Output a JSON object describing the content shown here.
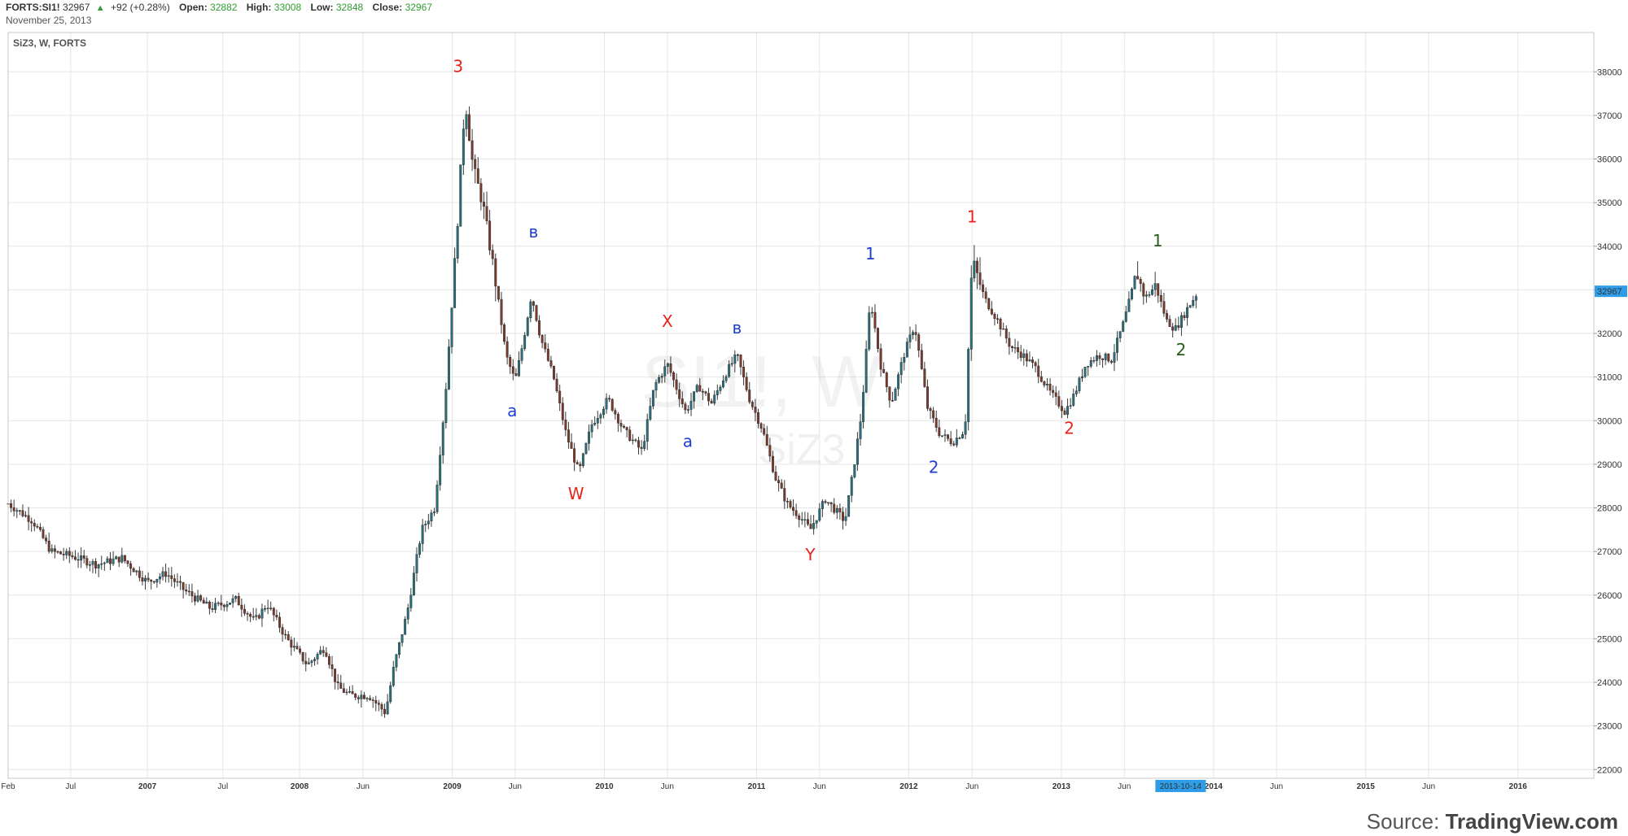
{
  "header": {
    "symbol": "FORTS:SI1!",
    "last": "32967",
    "change": "+92 (+0.28%)",
    "open_label": "Open:",
    "open": "32882",
    "high_label": "High:",
    "high": "33008",
    "low_label": "Low:",
    "low": "32848",
    "close_label": "Close:",
    "close": "32967",
    "date": "November 25, 2013"
  },
  "legend": "SiZ3, W, FORTS",
  "watermark": {
    "main": "SI1!, W",
    "sub": "SiZ3"
  },
  "price_tag": "32967",
  "time_tag": "2013-10-14",
  "source": {
    "prefix": "Source: ",
    "brand": "TradingView.com"
  },
  "colors": {
    "up": "#2a6f7d",
    "down": "#7a3b2a",
    "wick": "#3a3a3a",
    "grid": "#e6e6e6",
    "tag": "#2e9ce6",
    "red": "#e8231e",
    "blue": "#1f3fcf",
    "green": "#2a5a1a"
  },
  "chart_data": {
    "type": "candlestick",
    "interval": "W",
    "yticks": [
      22000,
      23000,
      24000,
      25000,
      26000,
      27000,
      28000,
      29000,
      30000,
      31000,
      32000,
      33000,
      34000,
      35000,
      36000,
      37000,
      38000
    ],
    "ylim": [
      21800,
      38900
    ],
    "xlim": [
      "2006-02-01",
      "2016-07-01"
    ],
    "xticks": [
      {
        "date": "2006-02-01",
        "label": "Feb",
        "year": false
      },
      {
        "date": "2006-07-01",
        "label": "Jul",
        "year": false
      },
      {
        "date": "2007-01-01",
        "label": "2007",
        "year": true
      },
      {
        "date": "2007-07-01",
        "label": "Jul",
        "year": false
      },
      {
        "date": "2008-01-01",
        "label": "2008",
        "year": true
      },
      {
        "date": "2008-06-01",
        "label": "Jun",
        "year": false
      },
      {
        "date": "2009-01-01",
        "label": "2009",
        "year": true
      },
      {
        "date": "2009-06-01",
        "label": "Jun",
        "year": false
      },
      {
        "date": "2010-01-01",
        "label": "2010",
        "year": true
      },
      {
        "date": "2010-06-01",
        "label": "Jun",
        "year": false
      },
      {
        "date": "2011-01-01",
        "label": "2011",
        "year": true
      },
      {
        "date": "2011-06-01",
        "label": "Jun",
        "year": false
      },
      {
        "date": "2012-01-01",
        "label": "2012",
        "year": true
      },
      {
        "date": "2012-06-01",
        "label": "Jun",
        "year": false
      },
      {
        "date": "2013-01-01",
        "label": "2013",
        "year": true
      },
      {
        "date": "2013-06-01",
        "label": "Jun",
        "year": false
      },
      {
        "date": "2014-01-01",
        "label": "2014",
        "year": true
      },
      {
        "date": "2014-06-01",
        "label": "Jun",
        "year": false
      },
      {
        "date": "2015-01-01",
        "label": "2015",
        "year": true
      },
      {
        "date": "2015-06-01",
        "label": "Jun",
        "year": false
      },
      {
        "date": "2016-01-01",
        "label": "2016",
        "year": true
      }
    ],
    "path": [
      [
        "2006-02-01",
        28100
      ],
      [
        "2006-04-01",
        27700
      ],
      [
        "2006-05-15",
        27000
      ],
      [
        "2006-07-01",
        26900
      ],
      [
        "2006-09-01",
        26700
      ],
      [
        "2006-11-01",
        26850
      ],
      [
        "2007-01-01",
        26300
      ],
      [
        "2007-02-15",
        26500
      ],
      [
        "2007-04-01",
        26100
      ],
      [
        "2007-06-01",
        25700
      ],
      [
        "2007-08-01",
        25900
      ],
      [
        "2007-09-15",
        25400
      ],
      [
        "2007-10-15",
        25800
      ],
      [
        "2007-12-01",
        25000
      ],
      [
        "2008-01-20",
        24400
      ],
      [
        "2008-03-01",
        24800
      ],
      [
        "2008-04-01",
        23900
      ],
      [
        "2008-05-01",
        23700
      ],
      [
        "2008-06-15",
        23700
      ],
      [
        "2008-07-25",
        23300
      ],
      [
        "2008-08-15",
        24400
      ],
      [
        "2008-09-15",
        25600
      ],
      [
        "2008-10-20",
        27500
      ],
      [
        "2008-11-20",
        28000
      ],
      [
        "2008-12-15",
        30500
      ],
      [
        "2009-01-10",
        34000
      ],
      [
        "2009-02-01",
        37400
      ],
      [
        "2009-02-20",
        35800
      ],
      [
        "2009-03-15",
        35000
      ],
      [
        "2009-04-10",
        33500
      ],
      [
        "2009-05-10",
        31500
      ],
      [
        "2009-06-01",
        30900
      ],
      [
        "2009-06-20",
        31800
      ],
      [
        "2009-07-10",
        32900
      ],
      [
        "2009-08-01",
        31900
      ],
      [
        "2009-09-01",
        31000
      ],
      [
        "2009-10-01",
        29700
      ],
      [
        "2009-11-01",
        28800
      ],
      [
        "2009-12-01",
        29900
      ],
      [
        "2010-01-10",
        30500
      ],
      [
        "2010-02-15",
        29800
      ],
      [
        "2010-04-01",
        29300
      ],
      [
        "2010-05-01",
        30800
      ],
      [
        "2010-06-01",
        31300
      ],
      [
        "2010-07-15",
        30200
      ],
      [
        "2010-08-15",
        30800
      ],
      [
        "2010-09-15",
        30400
      ],
      [
        "2010-10-20",
        31100
      ],
      [
        "2010-11-15",
        31500
      ],
      [
        "2010-12-15",
        30500
      ],
      [
        "2011-01-15",
        29800
      ],
      [
        "2011-02-15",
        28700
      ],
      [
        "2011-03-15",
        28100
      ],
      [
        "2011-04-15",
        27800
      ],
      [
        "2011-05-10",
        27500
      ],
      [
        "2011-06-15",
        28200
      ],
      [
        "2011-08-01",
        27700
      ],
      [
        "2011-08-20",
        28800
      ],
      [
        "2011-09-10",
        30200
      ],
      [
        "2011-10-01",
        32800
      ],
      [
        "2011-10-25",
        31300
      ],
      [
        "2011-11-20",
        30400
      ],
      [
        "2011-12-20",
        31500
      ],
      [
        "2012-01-15",
        32200
      ],
      [
        "2012-02-15",
        30300
      ],
      [
        "2012-03-15",
        29700
      ],
      [
        "2012-04-15",
        29500
      ],
      [
        "2012-05-15",
        29800
      ],
      [
        "2012-06-01",
        33700
      ],
      [
        "2012-07-01",
        32800
      ],
      [
        "2012-08-01",
        32300
      ],
      [
        "2012-09-01",
        31700
      ],
      [
        "2012-10-01",
        31500
      ],
      [
        "2012-11-01",
        31200
      ],
      [
        "2012-12-01",
        30700
      ],
      [
        "2013-01-10",
        30200
      ],
      [
        "2013-02-01",
        30600
      ],
      [
        "2013-03-01",
        31300
      ],
      [
        "2013-04-01",
        31500
      ],
      [
        "2013-05-01",
        31400
      ],
      [
        "2013-06-01",
        32300
      ],
      [
        "2013-07-01",
        33400
      ],
      [
        "2013-07-20",
        32800
      ],
      [
        "2013-08-15",
        33100
      ],
      [
        "2013-09-10",
        32300
      ],
      [
        "2013-10-01",
        32100
      ],
      [
        "2013-10-14",
        32300
      ],
      [
        "2013-11-01",
        32600
      ],
      [
        "2013-11-25",
        32967
      ]
    ],
    "annotations": [
      {
        "text": "3",
        "date": "2009-01-15",
        "price": 38000,
        "color": "red"
      },
      {
        "text": "в",
        "date": "2009-07-15",
        "price": 34200,
        "color": "blue"
      },
      {
        "text": "а",
        "date": "2009-05-25",
        "price": 30100,
        "color": "blue"
      },
      {
        "text": "W",
        "date": "2009-10-25",
        "price": 28200,
        "color": "red"
      },
      {
        "text": "X",
        "date": "2010-06-01",
        "price": 32150,
        "color": "red"
      },
      {
        "text": "а",
        "date": "2010-07-20",
        "price": 29400,
        "color": "blue"
      },
      {
        "text": "в",
        "date": "2010-11-15",
        "price": 32000,
        "color": "blue"
      },
      {
        "text": "Y",
        "date": "2011-05-10",
        "price": 26800,
        "color": "red"
      },
      {
        "text": "1",
        "date": "2011-10-01",
        "price": 33700,
        "color": "blue"
      },
      {
        "text": "2",
        "date": "2012-03-01",
        "price": 28800,
        "color": "blue"
      },
      {
        "text": "1",
        "date": "2012-06-01",
        "price": 34550,
        "color": "red"
      },
      {
        "text": "2",
        "date": "2013-01-20",
        "price": 29700,
        "color": "red"
      },
      {
        "text": "1",
        "date": "2013-08-20",
        "price": 34000,
        "color": "green"
      },
      {
        "text": "2",
        "date": "2013-10-15",
        "price": 31500,
        "color": "green"
      }
    ]
  }
}
